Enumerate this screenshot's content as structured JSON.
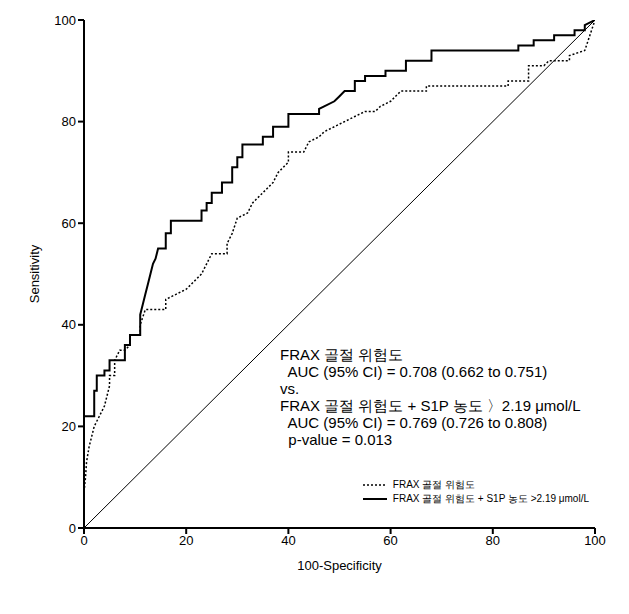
{
  "chart_data": {
    "type": "line",
    "x_label": "100-Specificity",
    "y_label": "Sensitivity",
    "xlim": [
      0,
      100
    ],
    "ylim": [
      0,
      100
    ],
    "xticks": [
      0,
      20,
      40,
      60,
      80,
      100
    ],
    "yticks": [
      0,
      20,
      40,
      60,
      80,
      100
    ],
    "grid": false,
    "legend": "lower right",
    "reference_line": {
      "x": [
        0,
        100
      ],
      "y": [
        0,
        100
      ]
    },
    "annotation": [
      "FRAX 골절 위험도",
      "  AUC (95% CI) = 0.708 (0.662 to 0.751)",
      "vs.",
      "FRAX 골절 위험도 + S1P 농도 〉2.19 μmol/L",
      "  AUC (95% CI) = 0.769 (0.726 to 0.808)",
      "  p-value = 0.013"
    ],
    "series": [
      {
        "name": "FRAX 골절 위험도",
        "color": "#000000",
        "line_style": "dotted",
        "x": [
          0,
          0,
          0.3,
          0.5,
          1,
          1.5,
          2,
          3,
          4,
          5,
          5,
          6,
          6,
          7,
          8,
          9,
          9,
          11,
          11,
          12,
          16,
          16,
          18,
          20,
          21,
          23,
          24,
          25,
          28,
          28,
          29,
          30,
          32,
          33,
          34,
          35,
          37,
          38,
          40,
          40,
          43,
          44,
          46,
          47,
          49,
          51,
          53,
          55,
          57,
          58,
          60,
          62,
          67,
          67,
          83,
          83,
          87,
          87,
          90,
          91,
          95,
          95,
          98,
          99,
          100
        ],
        "values": [
          0,
          7,
          10,
          13,
          16,
          18,
          20,
          22,
          24,
          28,
          30,
          30,
          33,
          35,
          35,
          36,
          38,
          38,
          40,
          43,
          43,
          45,
          46,
          47,
          48,
          50,
          52,
          54,
          54,
          56,
          58,
          61,
          62,
          64,
          65,
          66,
          68,
          70,
          72,
          74,
          74,
          76,
          77,
          78,
          79,
          80,
          81,
          82,
          82,
          83,
          84,
          86,
          86,
          87,
          87,
          88,
          88,
          91,
          91,
          92,
          92,
          93,
          94,
          97,
          100
        ]
      },
      {
        "name": "FRAX 골절 위험도 + S1P 농도 >2.19 μmol/L",
        "color": "#000000",
        "line_style": "solid",
        "x": [
          0,
          0,
          2,
          2,
          2.5,
          2.5,
          4,
          4,
          5,
          5,
          8,
          8,
          9,
          9,
          11,
          11,
          11.5,
          12,
          12.5,
          13,
          13.5,
          14,
          14.5,
          16,
          16,
          17,
          17,
          23,
          23,
          24,
          24,
          25,
          25,
          27,
          27,
          29,
          29,
          30,
          30,
          31,
          31,
          35,
          35,
          37,
          37,
          40,
          40,
          46,
          46,
          47,
          49,
          50,
          51,
          53,
          53,
          55,
          55,
          59,
          59,
          63,
          63,
          68,
          68,
          85,
          85,
          88,
          88,
          92,
          92,
          96,
          96,
          98,
          98,
          100
        ],
        "values": [
          0,
          22,
          22,
          27,
          27,
          30,
          30,
          31,
          31,
          33,
          33,
          36,
          36,
          38,
          38,
          42,
          44,
          46,
          48,
          50,
          52,
          53,
          55,
          55,
          58,
          58,
          60.5,
          60.5,
          62.5,
          62.5,
          64,
          64,
          66,
          66,
          68,
          68,
          71,
          71,
          73,
          73,
          75.5,
          75.5,
          77,
          77,
          79,
          79,
          81.5,
          81.5,
          82.5,
          83,
          84,
          85,
          86,
          86,
          88,
          88,
          89,
          89,
          90,
          90,
          92,
          92,
          94,
          94,
          95,
          95,
          96,
          96,
          97,
          97,
          98,
          98,
          99,
          100
        ]
      }
    ]
  }
}
